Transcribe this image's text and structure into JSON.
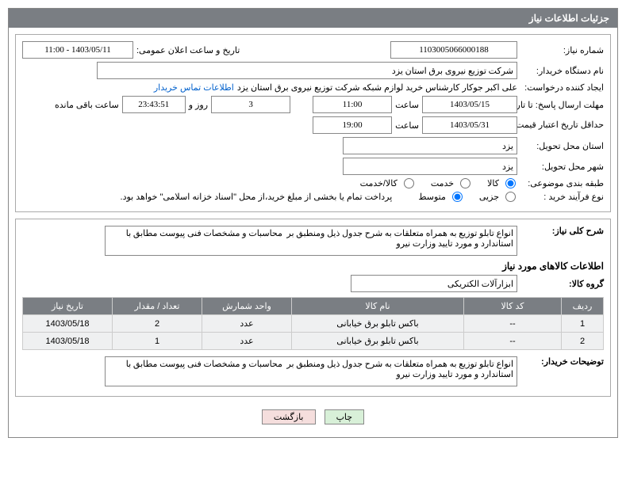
{
  "header": "جزئیات اطلاعات نیاز",
  "labels": {
    "needNo": "شماره نیاز:",
    "announce": "تاریخ و ساعت اعلان عمومی:",
    "buyer": "نام دستگاه خریدار:",
    "requester": "ایجاد کننده درخواست:",
    "contactLink": "اطلاعات تماس خریدار",
    "respDeadline": "مهلت ارسال پاسخ: تا تاریخ:",
    "time": "ساعت",
    "daysAnd": "روز و",
    "remaining": "ساعت باقی مانده",
    "priceValid": "حداقل تاریخ اعتبار قیمت: تا تاریخ:",
    "deliveryProvince": "استان محل تحویل:",
    "deliveryCity": "شهر محل تحویل:",
    "classification": "طبقه بندی موضوعی:",
    "procType": "نوع فرآیند خرید :",
    "desc": "شرح کلی نیاز:",
    "goodsInfo": "اطلاعات کالاهای مورد نیاز",
    "goodsGroup": "گروه کالا:",
    "buyerNotes": "توضیحات خریدار:"
  },
  "radios": {
    "goods": "کالا",
    "service": "خدمت",
    "goodsService": "کالا/خدمت",
    "small": "جزیی",
    "medium": "متوسط"
  },
  "values": {
    "needNo": "1103005066000188",
    "announce": "1403/05/11 - 11:00",
    "buyer": "شرکت توزیع نیروی برق استان یزد",
    "requester": "علی اکبر  جوکار  کارشناس خرید لوازم شبکه  شرکت توزیع نیروی برق استان یزد",
    "respDate": "1403/05/15",
    "respTime": "11:00",
    "days": "3",
    "countdown": "23:43:51",
    "priceDate": "1403/05/31",
    "priceTime": "19:00",
    "province": "یزد",
    "city": "یزد",
    "procNote": "پرداخت تمام یا بخشی از مبلغ خرید،از محل \"اسناد خزانه اسلامی\" خواهد بود.",
    "desc": "انواع تابلو توزیع به همراه متعلقات به شرح جدول ذیل ومنطبق بر  محاسبات و مشخصات فنی پیوست مطابق با استاندارد و مورد تایید وزارت نیرو",
    "goodsGroup": "ابزارآلات الکتریکی",
    "buyerNotes": "انواع تابلو توزیع به همراه متعلقات به شرح جدول ذیل ومنطبق بر  محاسبات و مشخصات فنی پیوست مطابق با استاندارد و مورد تایید وزارت نیرو"
  },
  "tableHeaders": {
    "row": "ردیف",
    "code": "کد کالا",
    "name": "نام کالا",
    "unit": "واحد شمارش",
    "qty": "تعداد / مقدار",
    "needDate": "تاریخ نیاز"
  },
  "rows": [
    {
      "n": "1",
      "code": "--",
      "name": "باکس تابلو برق خیابانی",
      "unit": "عدد",
      "qty": "2",
      "date": "1403/05/18"
    },
    {
      "n": "2",
      "code": "--",
      "name": "باکس تابلو برق خیابانی",
      "unit": "عدد",
      "qty": "1",
      "date": "1403/05/18"
    }
  ],
  "buttons": {
    "print": "چاپ",
    "back": "بازگشت"
  }
}
